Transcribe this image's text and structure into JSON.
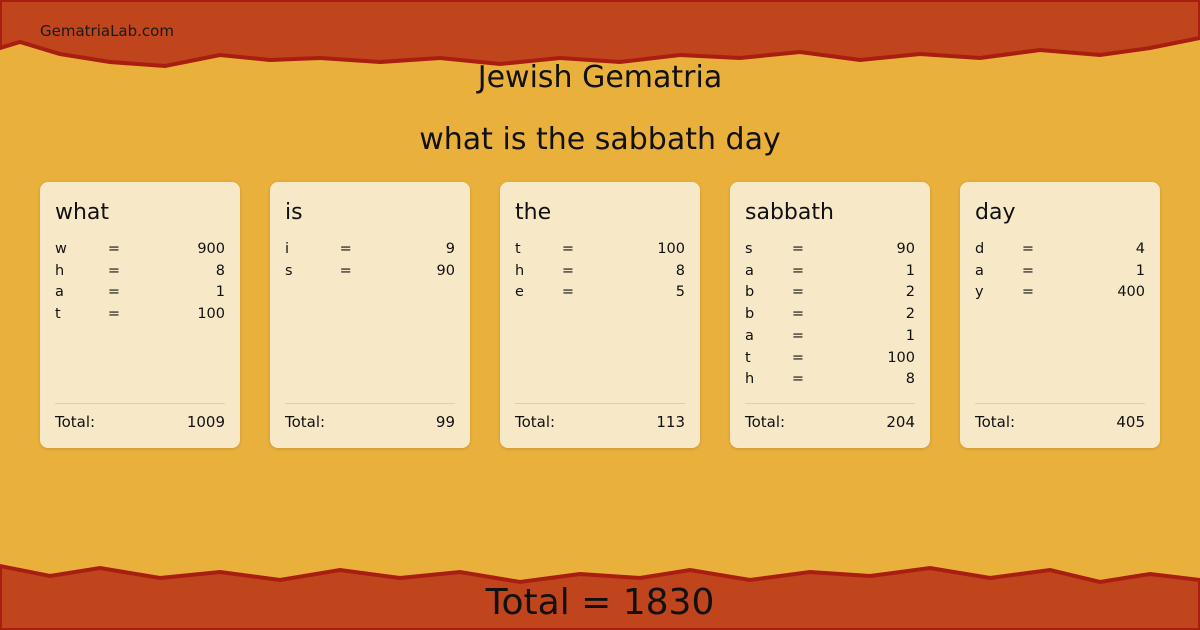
{
  "site": "GematriaLab.com",
  "title": "Jewish Gematria",
  "phrase": "what is the sabbath day",
  "colors": {
    "background": "#e9b03c",
    "band": "#c0441c",
    "card": "#f7e8c8"
  },
  "total_label": "Total:",
  "words": [
    {
      "word": "what",
      "letters": [
        [
          "w",
          "=",
          "900"
        ],
        [
          "h",
          "=",
          "8"
        ],
        [
          "a",
          "=",
          "1"
        ],
        [
          "t",
          "=",
          "100"
        ]
      ],
      "total": "1009"
    },
    {
      "word": "is",
      "letters": [
        [
          "i",
          "=",
          "9"
        ],
        [
          "s",
          "=",
          "90"
        ]
      ],
      "total": "99"
    },
    {
      "word": "the",
      "letters": [
        [
          "t",
          "=",
          "100"
        ],
        [
          "h",
          "=",
          "8"
        ],
        [
          "e",
          "=",
          "5"
        ]
      ],
      "total": "113"
    },
    {
      "word": "sabbath",
      "letters": [
        [
          "s",
          "=",
          "90"
        ],
        [
          "a",
          "=",
          "1"
        ],
        [
          "b",
          "=",
          "2"
        ],
        [
          "b",
          "=",
          "2"
        ],
        [
          "a",
          "=",
          "1"
        ],
        [
          "t",
          "=",
          "100"
        ],
        [
          "h",
          "=",
          "8"
        ]
      ],
      "total": "204"
    },
    {
      "word": "day",
      "letters": [
        [
          "d",
          "=",
          "4"
        ],
        [
          "a",
          "=",
          "1"
        ],
        [
          "y",
          "=",
          "400"
        ]
      ],
      "total": "405"
    }
  ],
  "grand_total": "Total = 1830"
}
